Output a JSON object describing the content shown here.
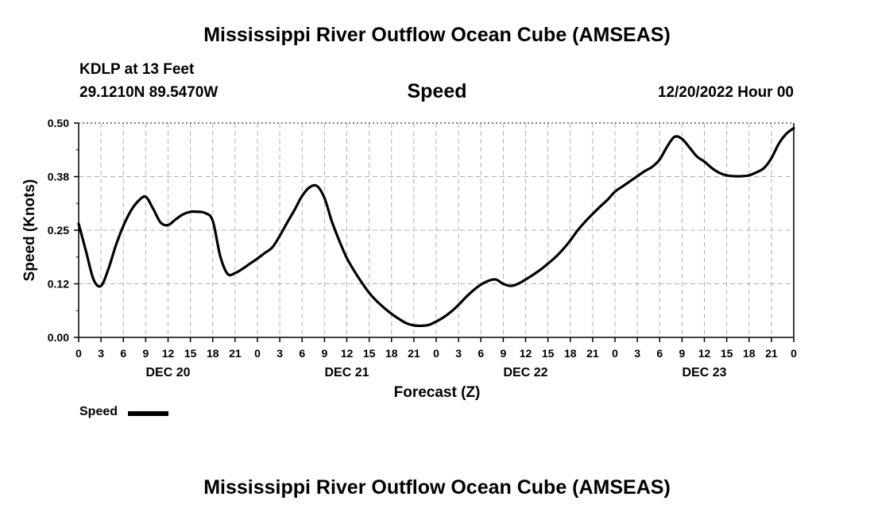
{
  "title": "Mississippi River Outflow Ocean Cube (AMSEAS)",
  "header": {
    "station": "KDLP at 13 Feet",
    "coords": "29.1210N  89.5470W",
    "subtitle": "Speed",
    "datetime": "12/20/2022 Hour 00"
  },
  "footer_title": "Mississippi River Outflow Ocean Cube (AMSEAS)",
  "chart_data": {
    "type": "line",
    "title": "Speed",
    "xlabel": "Forecast (Z)",
    "ylabel": "Speed (Knots)",
    "ylim": [
      0,
      0.5
    ],
    "xlim": [
      0,
      96
    ],
    "y_ticks": [
      0.0,
      0.125,
      0.25,
      0.375,
      0.5
    ],
    "y_tick_labels": [
      "0.00",
      "0.12",
      "0.25",
      "0.38",
      "0.50"
    ],
    "x_tick_hours": [
      0,
      3,
      6,
      9,
      12,
      15,
      18,
      21,
      24,
      27,
      30,
      33,
      36,
      39,
      42,
      45,
      48,
      51,
      54,
      57,
      60,
      63,
      66,
      69,
      72,
      75,
      78,
      81,
      84,
      87,
      90,
      93,
      96
    ],
    "x_tick_labels": [
      "0",
      "3",
      "6",
      "9",
      "12",
      "15",
      "18",
      "21",
      "0",
      "3",
      "6",
      "9",
      "12",
      "15",
      "18",
      "21",
      "0",
      "3",
      "6",
      "9",
      "12",
      "15",
      "18",
      "21",
      "0",
      "3",
      "6",
      "9",
      "12",
      "15",
      "18",
      "21",
      "0"
    ],
    "day_labels": [
      {
        "text": "DEC 20",
        "hour": 12
      },
      {
        "text": "DEC 21",
        "hour": 36
      },
      {
        "text": "DEC 22",
        "hour": 60
      },
      {
        "text": "DEC 23",
        "hour": 84
      }
    ],
    "grid": true,
    "legend": "bottom-left",
    "series": [
      {
        "name": "Speed",
        "color": "#000000",
        "x": [
          0,
          1,
          2,
          3,
          4,
          5,
          6,
          7,
          8,
          9,
          10,
          11,
          12,
          13,
          14,
          15,
          16,
          17,
          18,
          19,
          20,
          21,
          22,
          23,
          24,
          25,
          26,
          27,
          28,
          29,
          30,
          31,
          32,
          33,
          34,
          35,
          36,
          37,
          38,
          39,
          40,
          41,
          42,
          43,
          44,
          45,
          46,
          47,
          48,
          49,
          50,
          51,
          52,
          53,
          54,
          55,
          56,
          57,
          58,
          59,
          60,
          61,
          62,
          63,
          64,
          65,
          66,
          67,
          68,
          69,
          70,
          71,
          72,
          73,
          74,
          75,
          76,
          77,
          78,
          79,
          80,
          81,
          82,
          83,
          84,
          85,
          86,
          87,
          88,
          89,
          90,
          91,
          92,
          93,
          94,
          95,
          96
        ],
        "values": [
          0.265,
          0.2,
          0.135,
          0.12,
          0.16,
          0.215,
          0.26,
          0.295,
          0.318,
          0.328,
          0.3,
          0.268,
          0.262,
          0.275,
          0.287,
          0.293,
          0.293,
          0.29,
          0.272,
          0.19,
          0.148,
          0.15,
          0.16,
          0.172,
          0.184,
          0.197,
          0.21,
          0.237,
          0.268,
          0.298,
          0.33,
          0.35,
          0.353,
          0.325,
          0.27,
          0.225,
          0.185,
          0.155,
          0.128,
          0.104,
          0.085,
          0.069,
          0.055,
          0.043,
          0.033,
          0.028,
          0.027,
          0.029,
          0.037,
          0.047,
          0.06,
          0.076,
          0.094,
          0.11,
          0.123,
          0.132,
          0.135,
          0.125,
          0.12,
          0.125,
          0.135,
          0.146,
          0.158,
          0.172,
          0.187,
          0.205,
          0.226,
          0.25,
          0.27,
          0.288,
          0.305,
          0.321,
          0.34,
          0.352,
          0.364,
          0.376,
          0.388,
          0.398,
          0.415,
          0.445,
          0.468,
          0.463,
          0.443,
          0.422,
          0.41,
          0.395,
          0.384,
          0.378,
          0.376,
          0.376,
          0.378,
          0.385,
          0.395,
          0.418,
          0.452,
          0.475,
          0.488
        ]
      }
    ]
  }
}
